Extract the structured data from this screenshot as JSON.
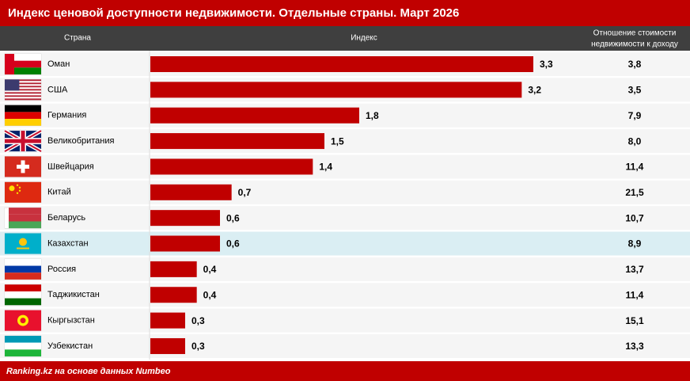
{
  "chart_data": {
    "type": "bar",
    "orientation": "horizontal",
    "title": "Индекс ценовой доступности недвижимости. Отдельные страны. Март 2026",
    "column_headers": [
      "Страна",
      "Индекс",
      "Отношение стоимости",
      "недвижимости к доходу"
    ],
    "categories": [
      "Оман",
      "США",
      "Германия",
      "Великобритания",
      "Швейцария",
      "Китай",
      "Беларусь",
      "Казахстан",
      "Россия",
      "Таджикистан",
      "Кыргызстан",
      "Узбекистан"
    ],
    "values": [
      3.3,
      3.2,
      1.8,
      1.5,
      1.4,
      0.7,
      0.6,
      0.6,
      0.4,
      0.4,
      0.3,
      0.3
    ],
    "value_labels": [
      "3,3",
      "3,2",
      "1,8",
      "1,5",
      "1,4",
      "0,7",
      "0,6",
      "0,6",
      "0,4",
      "0,4",
      "0,3",
      "0,3"
    ],
    "ratio": {
      "values": [
        3.8,
        3.5,
        7.9,
        8.0,
        11.4,
        21.5,
        10.7,
        8.9,
        13.7,
        11.4,
        15.1,
        13.3
      ],
      "value_labels": [
        "3,8",
        "3,5",
        "7,9",
        "8,0",
        "11,4",
        "21,5",
        "10,7",
        "8,9",
        "13,7",
        "11,4",
        "15,1",
        "13,3"
      ]
    },
    "color": "#c00000",
    "xlim": [
      0,
      3.3
    ],
    "highlight": 7,
    "highlight_color": "#daeef3",
    "source": "Ranking.kz на основе данных Numbeo"
  }
}
